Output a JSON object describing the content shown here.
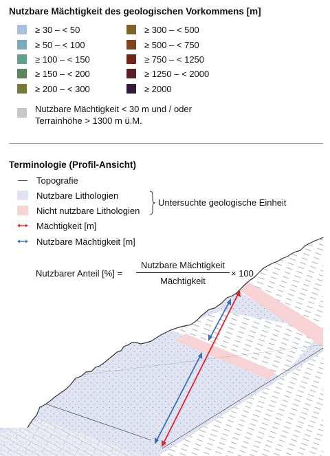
{
  "legend": {
    "title": "Nutzbare Mächtigkeit des geologischen Vorkommens [m]",
    "left_items": [
      {
        "label": "≥ 30 – < 50",
        "color": "#a9bfe0"
      },
      {
        "label": "≥ 50 – < 100",
        "color": "#7aabb9"
      },
      {
        "label": "≥ 100 – < 150",
        "color": "#63a189"
      },
      {
        "label": "≥ 150 – < 200",
        "color": "#5c855d"
      },
      {
        "label": "≥ 200 – < 300",
        "color": "#767a36"
      }
    ],
    "right_items": [
      {
        "label": "≥ 300 – < 500",
        "color": "#7d6329"
      },
      {
        "label": "≥ 500 – < 750",
        "color": "#7f461e"
      },
      {
        "label": "≥ 750 – < 1250",
        "color": "#6f2618"
      },
      {
        "label": "≥ 1250 – < 2000",
        "color": "#57202a"
      },
      {
        "label": "≥ 2000",
        "color": "#35193f"
      }
    ],
    "note": {
      "line1": "Nutzbare Mächtigkeit < 30 m und / oder",
      "line2": "Terrainhöhe > 1300 m ü.M.",
      "color": "#c8c8c8"
    }
  },
  "terminology": {
    "title": "Terminologie (Profil-Ansicht)",
    "topography": "Topografie",
    "usable_lithologies": "Nutzbare Lithologien",
    "unusable_lithologies": "Nicht nutzbare Lithologien",
    "unit_label": "Untersuchte geologische Einheit",
    "thickness": "Mächtigkeit [m]",
    "usable_thickness": "Nutzbare Mächtigkeit [m]",
    "colors": {
      "usable": "#dfe3f2",
      "unusable": "#f8d3d6",
      "thickness": "#e0242a",
      "usable_thickness": "#3c6cbf",
      "topography": "#555555"
    }
  },
  "formula": {
    "lhs": "Nutzbarer Anteil [%] =",
    "numerator": "Nutzbare Mächtigkeit",
    "denominator": "Mächtigkeit",
    "rhs": "× 100"
  }
}
